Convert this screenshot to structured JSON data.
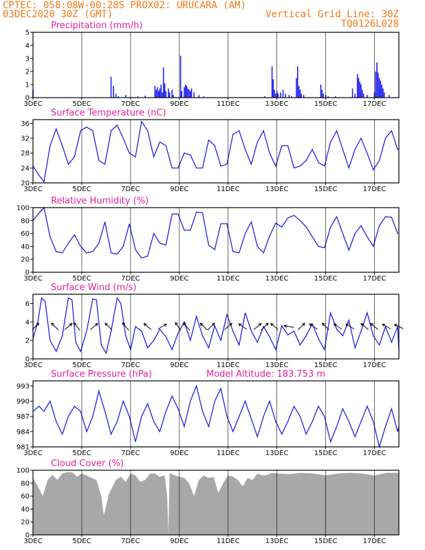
{
  "header": {
    "line1_left": "CPTEC:  058:08W-00:28S  PROX02: URUCARA (AM)",
    "line2_left": "03DEC2020 30Z (GMT)",
    "line2_right": "Vertical Grid Line: 30Z",
    "line3_right": "TQ0126L028"
  },
  "colors": {
    "line": "#2020e0",
    "bar": "#2020f0",
    "cloud": "#a8a8a8",
    "title": "#e0209a",
    "header": "#f07818",
    "arrow": "#000000"
  },
  "xaxis": {
    "day_start": 3,
    "day_end": 18,
    "tick_labels": [
      "3DEC",
      "5DEC",
      "7DEC",
      "9DEC",
      "11DEC",
      "13DEC",
      "15DEC",
      "17DEC"
    ],
    "tick_days": [
      3,
      5,
      7,
      9,
      11,
      13,
      15,
      17
    ]
  },
  "chart_data": [
    {
      "id": "precip",
      "type": "bar",
      "title": "Precipitation (mm/h)",
      "ylim": [
        0,
        5
      ],
      "yticks": [
        0,
        1,
        2,
        3,
        4,
        5
      ],
      "bars": [
        [
          3.0,
          0.6
        ],
        [
          6.2,
          1.6
        ],
        [
          6.3,
          0.9
        ],
        [
          6.4,
          0.3
        ],
        [
          6.5,
          0.1
        ],
        [
          6.8,
          0.2
        ],
        [
          7.3,
          0.1
        ],
        [
          7.6,
          0.15
        ],
        [
          8.0,
          0.9
        ],
        [
          8.05,
          0.6
        ],
        [
          8.1,
          0.8
        ],
        [
          8.15,
          0.5
        ],
        [
          8.2,
          0.7
        ],
        [
          8.25,
          1.0
        ],
        [
          8.3,
          0.4
        ],
        [
          8.35,
          2.3
        ],
        [
          8.4,
          1.1
        ],
        [
          8.45,
          0.5
        ],
        [
          8.55,
          0.7
        ],
        [
          8.6,
          0.4
        ],
        [
          8.7,
          0.6
        ],
        [
          8.75,
          0.2
        ],
        [
          9.05,
          3.2
        ],
        [
          9.1,
          0.5
        ],
        [
          9.2,
          0.8
        ],
        [
          9.25,
          1.0
        ],
        [
          9.3,
          0.9
        ],
        [
          9.35,
          0.7
        ],
        [
          9.4,
          0.6
        ],
        [
          9.45,
          0.5
        ],
        [
          9.5,
          0.7
        ],
        [
          9.6,
          0.4
        ],
        [
          9.8,
          0.2
        ],
        [
          10.0,
          0.1
        ],
        [
          12.5,
          0.1
        ],
        [
          12.8,
          2.4
        ],
        [
          12.85,
          1.4
        ],
        [
          12.9,
          0.6
        ],
        [
          12.95,
          0.3
        ],
        [
          13.0,
          0.5
        ],
        [
          13.05,
          0.3
        ],
        [
          13.15,
          0.4
        ],
        [
          13.25,
          0.6
        ],
        [
          13.35,
          0.3
        ],
        [
          13.5,
          0.2
        ],
        [
          13.6,
          0.1
        ],
        [
          13.8,
          1.5
        ],
        [
          13.85,
          2.4
        ],
        [
          13.9,
          0.9
        ],
        [
          13.95,
          0.6
        ],
        [
          14.0,
          0.3
        ],
        [
          14.1,
          0.2
        ],
        [
          14.8,
          1.0
        ],
        [
          14.85,
          0.6
        ],
        [
          14.9,
          0.3
        ],
        [
          15.0,
          0.2
        ],
        [
          15.1,
          0.1
        ],
        [
          15.4,
          0.1
        ],
        [
          16.1,
          0.7
        ],
        [
          16.2,
          0.3
        ],
        [
          16.3,
          1.8
        ],
        [
          16.35,
          1.5
        ],
        [
          16.4,
          1.2
        ],
        [
          16.45,
          1.0
        ],
        [
          16.5,
          0.6
        ],
        [
          16.55,
          0.3
        ],
        [
          16.7,
          0.2
        ],
        [
          17.0,
          0.4
        ],
        [
          17.05,
          2.0
        ],
        [
          17.1,
          2.7
        ],
        [
          17.15,
          1.9
        ],
        [
          17.2,
          1.5
        ],
        [
          17.25,
          1.3
        ],
        [
          17.3,
          1.0
        ],
        [
          17.35,
          0.7
        ],
        [
          17.4,
          0.4
        ],
        [
          17.6,
          0.2
        ]
      ]
    },
    {
      "id": "temp",
      "type": "line",
      "title": "Surface Temperature (nC)",
      "ylim": [
        20,
        37
      ],
      "yticks": [
        20,
        24,
        28,
        32,
        36
      ],
      "x": [
        3.0,
        3.25,
        3.45,
        3.7,
        3.95,
        4.2,
        4.45,
        4.7,
        4.95,
        5.2,
        5.45,
        5.7,
        5.95,
        6.2,
        6.45,
        6.7,
        6.95,
        7.2,
        7.45,
        7.7,
        7.95,
        8.2,
        8.45,
        8.7,
        8.95,
        9.2,
        9.45,
        9.7,
        9.95,
        10.2,
        10.45,
        10.7,
        10.95,
        11.2,
        11.45,
        11.7,
        11.95,
        12.2,
        12.45,
        12.7,
        12.95,
        13.2,
        13.45,
        13.7,
        13.95,
        14.2,
        14.45,
        14.7,
        14.95,
        15.2,
        15.45,
        15.7,
        15.95,
        16.2,
        16.45,
        16.7,
        16.95,
        17.2,
        17.45,
        17.7,
        17.95,
        18.0
      ],
      "y": [
        24.5,
        22,
        20.3,
        30,
        34.5,
        30,
        25,
        27,
        34,
        35,
        34,
        26,
        25,
        34,
        35.5,
        32,
        28,
        27,
        36.5,
        34,
        27,
        31,
        30,
        24,
        24,
        28,
        27.5,
        24,
        24,
        31.5,
        30,
        24.5,
        25,
        33,
        34,
        29,
        25,
        31,
        34,
        28,
        24.5,
        30,
        30,
        24,
        24.5,
        26,
        29,
        25.5,
        24.5,
        31,
        34,
        29,
        24,
        29,
        32,
        28,
        23.5,
        26,
        32,
        34,
        29,
        29
      ]
    },
    {
      "id": "rh",
      "type": "line",
      "title": "Relative Humidity (%)",
      "ylim": [
        0,
        100
      ],
      "yticks": [
        0,
        20,
        40,
        60,
        80,
        100
      ],
      "x": [
        3.0,
        3.25,
        3.45,
        3.7,
        3.95,
        4.2,
        4.45,
        4.7,
        4.95,
        5.2,
        5.45,
        5.7,
        5.95,
        6.2,
        6.45,
        6.7,
        6.95,
        7.2,
        7.45,
        7.7,
        7.95,
        8.2,
        8.45,
        8.7,
        8.95,
        9.2,
        9.45,
        9.7,
        9.95,
        10.2,
        10.45,
        10.7,
        10.95,
        11.2,
        11.45,
        11.7,
        11.95,
        12.2,
        12.45,
        12.7,
        12.95,
        13.2,
        13.45,
        13.7,
        13.95,
        14.2,
        14.45,
        14.7,
        14.95,
        15.2,
        15.45,
        15.7,
        15.95,
        16.2,
        16.45,
        16.7,
        16.95,
        17.2,
        17.45,
        17.7,
        17.95,
        18.0
      ],
      "y": [
        80,
        92,
        100,
        55,
        32,
        30,
        45,
        58,
        40,
        30,
        32,
        45,
        78,
        30,
        28,
        40,
        75,
        35,
        22,
        25,
        60,
        45,
        42,
        90,
        90,
        65,
        65,
        93,
        92,
        42,
        35,
        75,
        75,
        32,
        30,
        60,
        78,
        40,
        30,
        56,
        76,
        70,
        84,
        88,
        80,
        70,
        55,
        40,
        38,
        70,
        86,
        60,
        34,
        60,
        72,
        55,
        40,
        72,
        86,
        85,
        60,
        60
      ]
    },
    {
      "id": "wind",
      "type": "line",
      "title": "Surface Wind (m/s)",
      "ylim": [
        0,
        7
      ],
      "yticks": [
        0,
        2,
        4,
        6
      ],
      "x": [
        3.0,
        3.2,
        3.35,
        3.5,
        3.7,
        3.95,
        4.2,
        4.45,
        4.6,
        4.75,
        4.95,
        5.2,
        5.45,
        5.6,
        5.8,
        6.0,
        6.2,
        6.45,
        6.6,
        6.8,
        7.0,
        7.2,
        7.45,
        7.7,
        7.95,
        8.2,
        8.45,
        8.7,
        8.95,
        9.2,
        9.45,
        9.7,
        9.95,
        10.2,
        10.45,
        10.7,
        10.95,
        11.2,
        11.45,
        11.7,
        11.95,
        12.2,
        12.45,
        12.7,
        12.95,
        13.2,
        13.45,
        13.7,
        13.95,
        14.2,
        14.45,
        14.7,
        14.95,
        15.2,
        15.45,
        15.7,
        15.95,
        16.2,
        16.45,
        16.7,
        16.95,
        17.2,
        17.45,
        17.7,
        17.95,
        18.0
      ],
      "y": [
        2.2,
        4.0,
        6.6,
        6.2,
        2.0,
        0.8,
        2.5,
        6.6,
        6.4,
        1.8,
        0.8,
        3.0,
        6.5,
        6.4,
        1.5,
        0.6,
        3.0,
        6.6,
        6.0,
        2.5,
        1.0,
        3.5,
        3.0,
        1.2,
        2.0,
        3.2,
        2.4,
        1.0,
        2.8,
        4.0,
        2.0,
        4.6,
        2.5,
        1.2,
        3.6,
        2.0,
        4.8,
        3.0,
        1.5,
        5.0,
        3.0,
        1.8,
        3.5,
        2.4,
        1.0,
        3.6,
        2.6,
        3.0,
        1.5,
        2.5,
        3.8,
        2.2,
        1.0,
        5.0,
        3.2,
        2.5,
        4.2,
        1.2,
        3.0,
        5.0,
        2.5,
        1.5,
        3.5,
        1.8,
        3.5,
        0.9
      ]
    },
    {
      "id": "pres",
      "type": "line",
      "title": "Surface Pressure (hPa)",
      "extra_label": "Model Altitude: 183.753 m",
      "ylim": [
        981,
        994
      ],
      "yticks": [
        981,
        984,
        987,
        990,
        993
      ],
      "x": [
        3.0,
        3.25,
        3.45,
        3.7,
        3.95,
        4.2,
        4.45,
        4.7,
        4.95,
        5.2,
        5.45,
        5.7,
        5.95,
        6.2,
        6.45,
        6.7,
        6.95,
        7.2,
        7.45,
        7.7,
        7.95,
        8.2,
        8.45,
        8.7,
        8.95,
        9.2,
        9.45,
        9.7,
        9.95,
        10.2,
        10.45,
        10.7,
        10.95,
        11.2,
        11.45,
        11.7,
        11.95,
        12.2,
        12.45,
        12.7,
        12.95,
        13.2,
        13.45,
        13.7,
        13.95,
        14.2,
        14.45,
        14.7,
        14.95,
        15.2,
        15.45,
        15.7,
        15.95,
        16.2,
        16.45,
        16.7,
        16.95,
        17.2,
        17.45,
        17.7,
        17.95,
        18.0
      ],
      "y": [
        988,
        989,
        988,
        990,
        986,
        983.5,
        987,
        989,
        988,
        984,
        987,
        992,
        988,
        983.5,
        986,
        990,
        987,
        982,
        987,
        989.5,
        986,
        984,
        988,
        991,
        988.5,
        985,
        990,
        993,
        988,
        985,
        990,
        992.5,
        987,
        984,
        987,
        990,
        986.5,
        983,
        987,
        990,
        986,
        983.5,
        986,
        989,
        987,
        983.5,
        986,
        989,
        987,
        982,
        985,
        988.5,
        986,
        983,
        986,
        989,
        986,
        981,
        985,
        988.5,
        984,
        985
      ]
    },
    {
      "id": "cloud",
      "type": "area",
      "title": "Cloud Cover (%)",
      "ylim": [
        0,
        100
      ],
      "yticks": [
        0,
        20,
        40,
        60,
        80,
        100
      ],
      "x": [
        3.0,
        3.2,
        3.4,
        3.6,
        3.8,
        4.0,
        4.2,
        4.4,
        4.6,
        4.8,
        5.0,
        5.2,
        5.4,
        5.6,
        5.8,
        5.9,
        6.0,
        6.1,
        6.2,
        6.4,
        6.6,
        6.8,
        7.0,
        7.2,
        7.4,
        7.6,
        7.8,
        8.0,
        8.2,
        8.4,
        8.5,
        8.55,
        8.6,
        8.8,
        9.0,
        9.2,
        9.4,
        9.6,
        9.8,
        10.0,
        10.2,
        10.4,
        10.6,
        10.8,
        11.0,
        11.2,
        11.4,
        11.6,
        11.8,
        12.0,
        12.2,
        12.4,
        12.6,
        12.8,
        13.0,
        13.5,
        14.0,
        14.5,
        15.0,
        15.5,
        16.0,
        16.5,
        17.0,
        17.5,
        18.0
      ],
      "y": [
        88,
        75,
        60,
        85,
        93,
        85,
        95,
        97,
        97,
        90,
        95,
        92,
        88,
        85,
        60,
        30,
        45,
        62,
        70,
        85,
        90,
        82,
        95,
        92,
        82,
        85,
        95,
        95,
        90,
        92,
        60,
        2,
        96,
        92,
        90,
        88,
        80,
        60,
        85,
        92,
        88,
        90,
        65,
        80,
        92,
        90,
        85,
        75,
        88,
        85,
        95,
        92,
        93,
        96,
        95,
        94,
        96,
        95,
        92,
        95,
        96,
        95,
        92,
        96,
        96
      ]
    }
  ],
  "wind_arrows": [
    {
      "day": 3.1,
      "dir": 45
    },
    {
      "day": 3.9,
      "dir": 135
    },
    {
      "day": 4.45,
      "dir": 40
    },
    {
      "day": 4.8,
      "dir": 130
    },
    {
      "day": 5.5,
      "dir": 40
    },
    {
      "day": 6.1,
      "dir": 135
    },
    {
      "day": 6.8,
      "dir": 130
    },
    {
      "day": 7.7,
      "dir": 140
    },
    {
      "day": 8.3,
      "dir": 30
    },
    {
      "day": 8.95,
      "dir": 125
    },
    {
      "day": 9.3,
      "dir": 130
    },
    {
      "day": 10.0,
      "dir": 135
    },
    {
      "day": 10.3,
      "dir": 45
    },
    {
      "day": 11.0,
      "dir": 40
    },
    {
      "day": 11.6,
      "dir": 145
    },
    {
      "day": 12.2,
      "dir": 40
    },
    {
      "day": 12.5,
      "dir": 45
    },
    {
      "day": 12.9,
      "dir": 140
    },
    {
      "day": 13.5,
      "dir": 170
    },
    {
      "day": 14.0,
      "dir": 45
    },
    {
      "day": 14.5,
      "dir": 145
    },
    {
      "day": 15.0,
      "dir": 135
    },
    {
      "day": 15.5,
      "dir": 145
    },
    {
      "day": 16.0,
      "dir": 150
    },
    {
      "day": 16.6,
      "dir": 140
    },
    {
      "day": 17.0,
      "dir": 140
    },
    {
      "day": 17.5,
      "dir": 150
    },
    {
      "day": 18.0,
      "dir": 155
    }
  ]
}
